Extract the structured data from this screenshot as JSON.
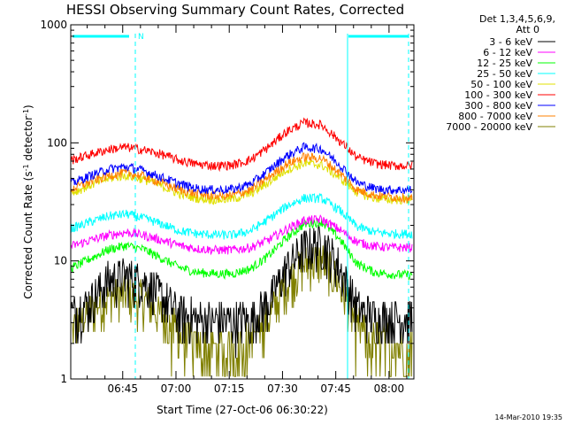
{
  "chart_data": {
    "type": "line",
    "title": "HESSI Observing Summary Count Rates, Corrected",
    "xlabel": "Start Time (27-Oct-06 06:30:22)",
    "ylabel": "Corrected Count Rate (s",
    "ylabel_sup": "-1",
    "ylabel_mid": " detector",
    "ylabel_end": ")",
    "x_scale": "time",
    "x_range": [
      "06:30:22",
      "08:07:00"
    ],
    "x_ticks": [
      "06:45",
      "07:00",
      "07:15",
      "07:30",
      "07:45",
      "08:00"
    ],
    "y_scale": "log",
    "ylim": [
      1,
      1000
    ],
    "y_ticks": [
      "1",
      "10",
      "100",
      "1000"
    ],
    "grid": false,
    "legend_placement": "right",
    "legend_header": [
      "Det 1,3,4,5,6,9,",
      "Att 0"
    ],
    "flag_label": "N",
    "flag_line_color": "#00ffff",
    "x": [
      "06:31",
      "06:36",
      "06:41",
      "06:46",
      "06:51",
      "06:56",
      "07:01",
      "07:06",
      "07:11",
      "07:16",
      "07:21",
      "07:26",
      "07:31",
      "07:36",
      "07:41",
      "07:46",
      "07:51",
      "07:56",
      "08:01",
      "08:06"
    ],
    "series": [
      {
        "name": "3 - 6 keV",
        "color": "#000000",
        "values": [
          3.6,
          4.6,
          7.0,
          7.5,
          6.8,
          5.0,
          3.6,
          3.2,
          3.1,
          3.1,
          3.2,
          4.5,
          8.5,
          13.0,
          14.5,
          9.0,
          4.0,
          3.4,
          3.3,
          3.3
        ]
      },
      {
        "name": "6 - 12 keV",
        "color": "#ff00ff",
        "values": [
          13.5,
          15.0,
          16.5,
          17.5,
          16.5,
          15.0,
          13.5,
          12.7,
          12.4,
          12.4,
          13.0,
          15.0,
          18.5,
          22.0,
          22.5,
          18.5,
          14.5,
          13.3,
          13.0,
          13.0
        ]
      },
      {
        "name": "12 - 25 keV",
        "color": "#00ff00",
        "values": [
          8.8,
          10.5,
          12.5,
          13.5,
          12.5,
          10.5,
          8.8,
          8.0,
          7.8,
          7.8,
          8.6,
          11.0,
          15.5,
          20.5,
          21.5,
          15.5,
          9.5,
          8.0,
          7.7,
          7.6
        ]
      },
      {
        "name": "25 - 50 keV",
        "color": "#00ffff",
        "values": [
          19.0,
          21.5,
          24.0,
          25.0,
          23.0,
          20.5,
          18.0,
          17.0,
          16.6,
          16.6,
          18.0,
          22.5,
          29.0,
          34.0,
          34.0,
          27.0,
          19.5,
          17.5,
          17.0,
          17.0
        ]
      },
      {
        "name": "50 - 100 keV",
        "color": "#e0e000",
        "values": [
          38.0,
          44.0,
          50.0,
          53.0,
          49.0,
          43.0,
          37.0,
          34.0,
          33.0,
          33.5,
          37.0,
          46.0,
          59.0,
          67.0,
          65.0,
          51.0,
          38.0,
          34.0,
          33.0,
          33.0
        ]
      },
      {
        "name": "100 - 300 keV",
        "color": "#ff0000",
        "values": [
          72.0,
          80.0,
          88.0,
          92.0,
          87.0,
          80.0,
          71.0,
          66.0,
          64.0,
          65.0,
          72.0,
          92.0,
          124.0,
          148.0,
          142.0,
          105.0,
          75.0,
          67.0,
          64.0,
          64.0
        ]
      },
      {
        "name": "300 - 800 keV",
        "color": "#0000ff",
        "values": [
          46.0,
          53.0,
          60.0,
          63.0,
          58.0,
          51.0,
          45.0,
          41.0,
          40.0,
          40.5,
          45.0,
          58.0,
          77.0,
          92.0,
          89.0,
          66.0,
          46.0,
          41.0,
          40.0,
          40.0
        ]
      },
      {
        "name": "800 - 7000 keV",
        "color": "#ff8000",
        "values": [
          41.0,
          47.0,
          53.0,
          56.0,
          52.0,
          46.0,
          40.0,
          37.0,
          35.5,
          36.0,
          40.0,
          51.0,
          66.0,
          76.0,
          74.0,
          56.0,
          40.0,
          36.0,
          35.0,
          34.0
        ]
      },
      {
        "name": "7000 - 20000 keV",
        "color": "#808000",
        "values": [
          2.6,
          3.8,
          5.0,
          5.3,
          4.7,
          3.4,
          2.4,
          1.9,
          1.8,
          1.9,
          2.1,
          3.3,
          6.3,
          9.5,
          10.5,
          6.5,
          2.8,
          2.1,
          2.0,
          2.0
        ]
      }
    ],
    "footer": "14-Mar-2010 19:35"
  }
}
